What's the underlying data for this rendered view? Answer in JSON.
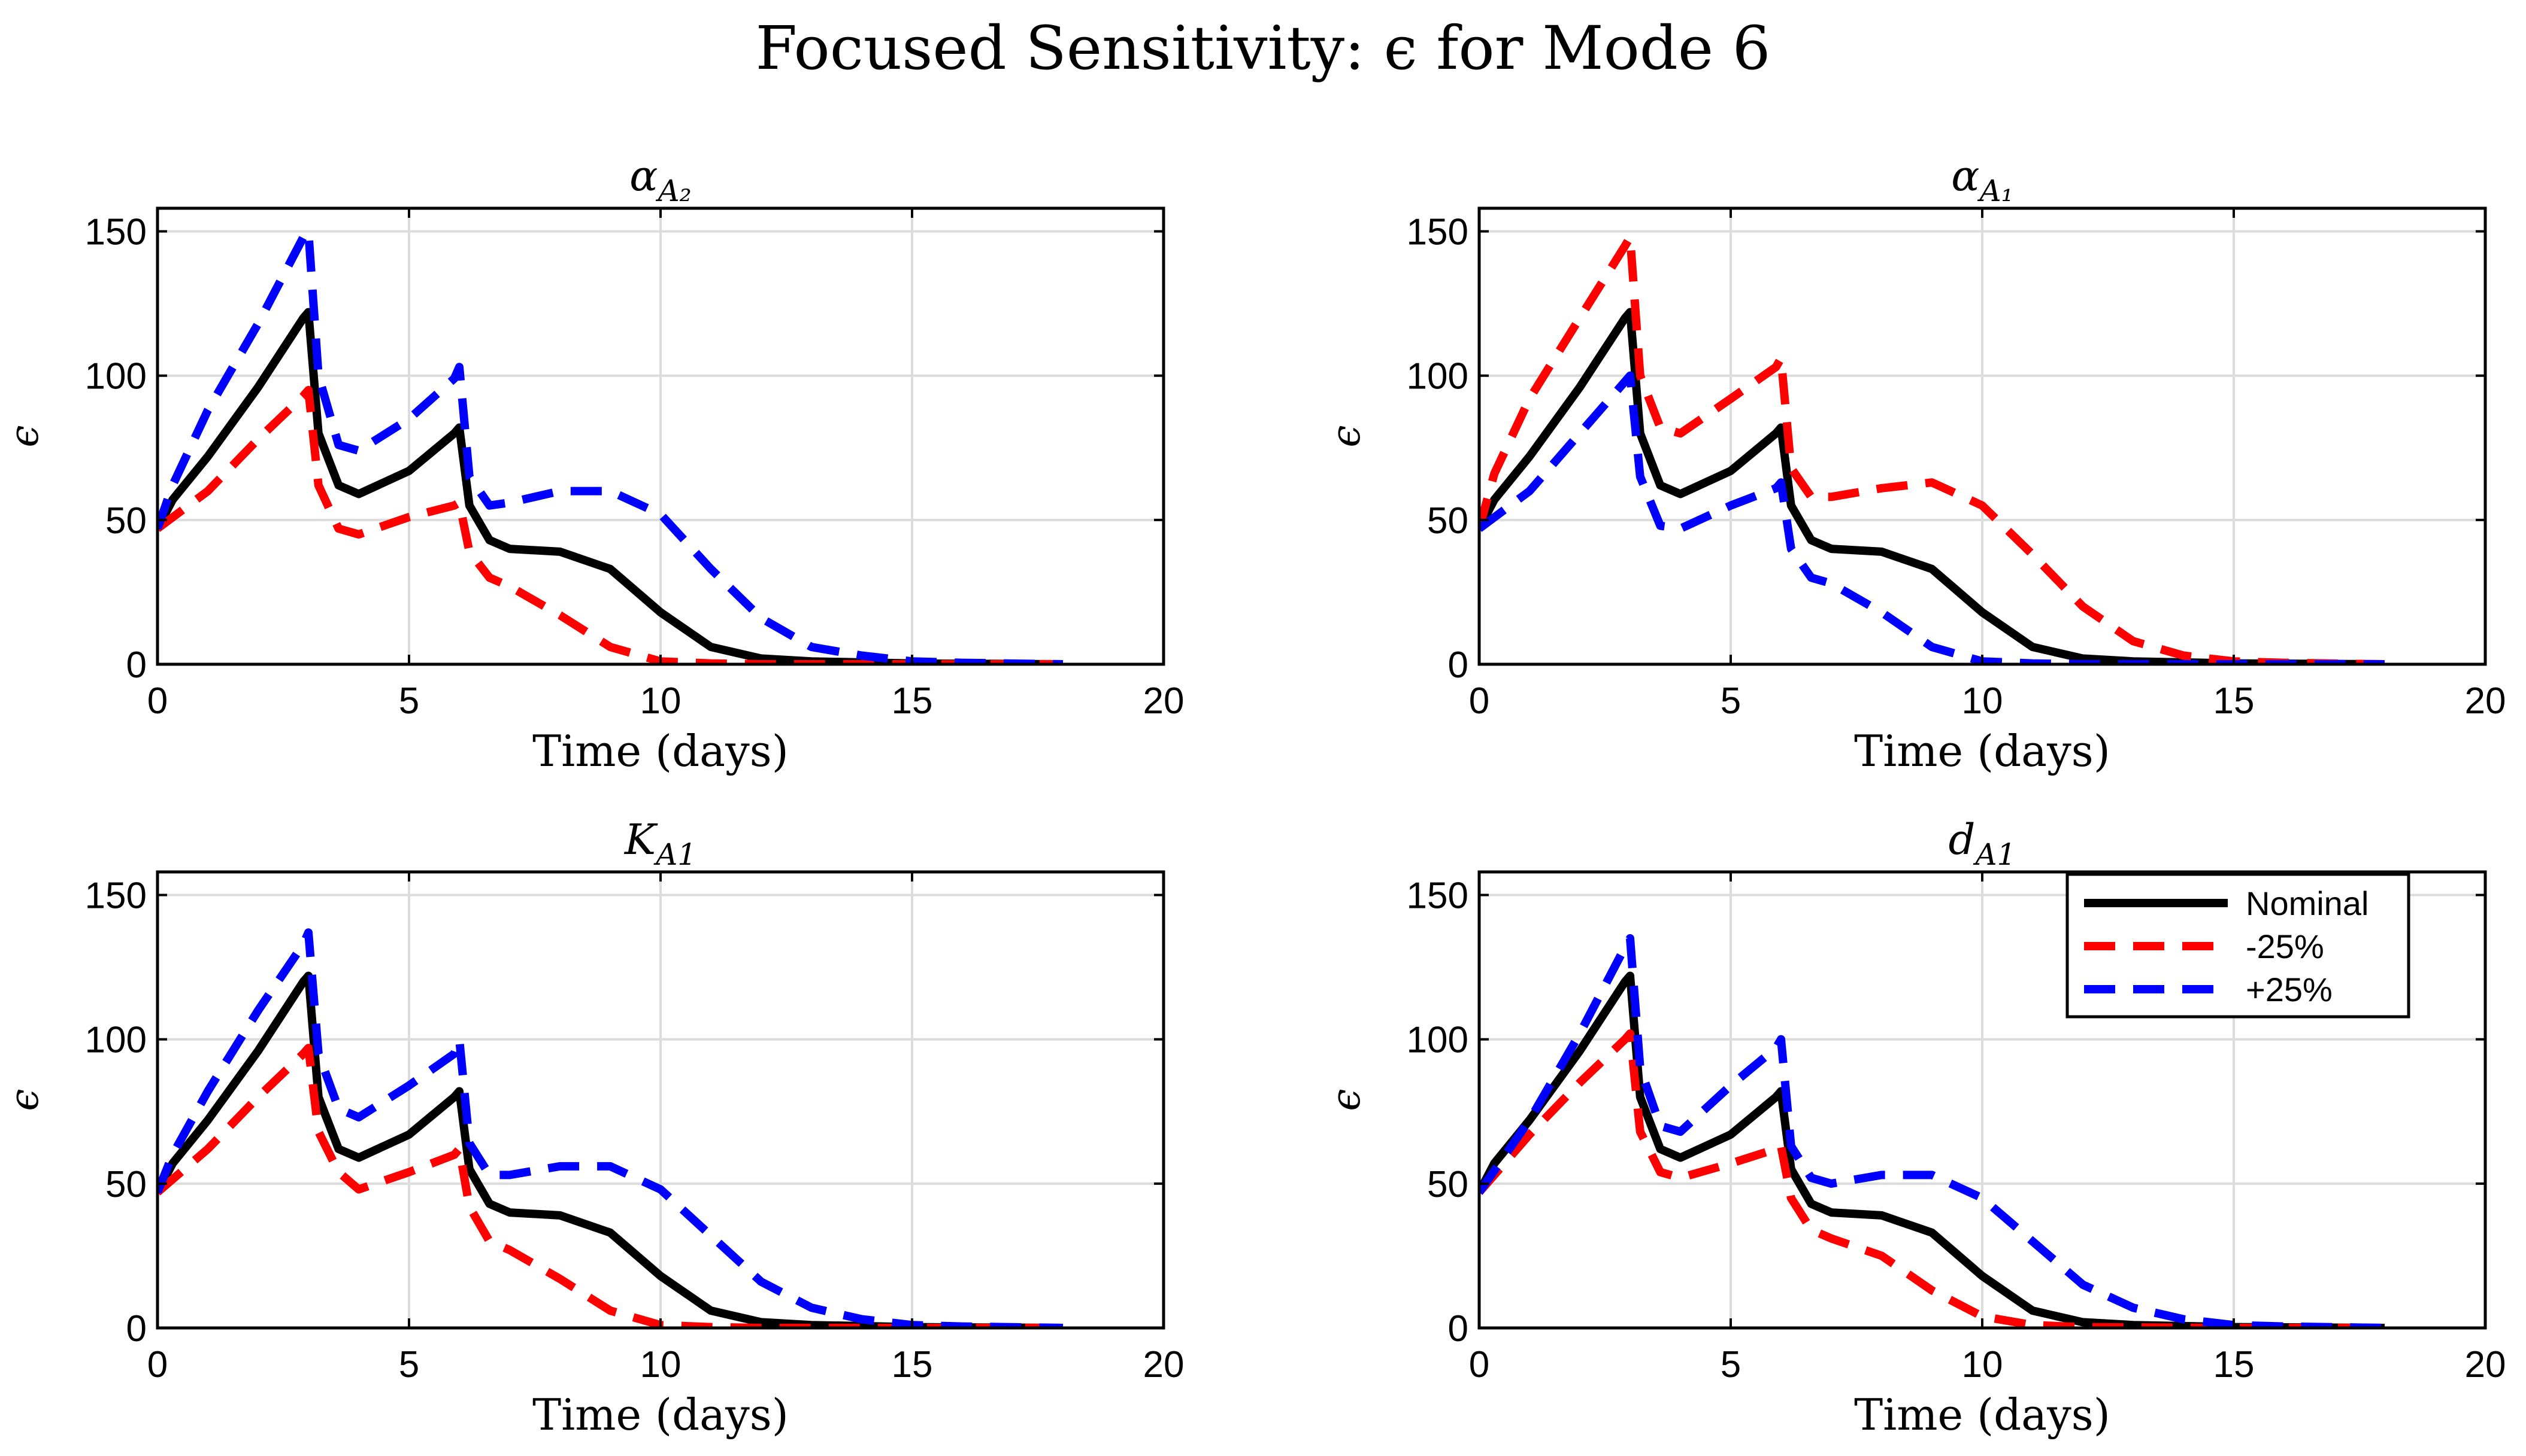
{
  "figure": {
    "title": "Focused Sensitivity: ϵ for Mode 6",
    "colors": {
      "nominal": "#000000",
      "minus": "#ff0000",
      "plus": "#0000ff",
      "grid": "#dcdcdc"
    }
  },
  "legend": {
    "placement": "top-right",
    "panel": 3,
    "entries": [
      "Nominal",
      "-25%",
      "+25%"
    ]
  },
  "chart_data": [
    {
      "type": "line",
      "title": "α",
      "title_sub": "A₂",
      "xlabel": "Time (days)",
      "ylabel": "ϵ",
      "xlim": [
        0,
        20
      ],
      "ylim": [
        0,
        158
      ],
      "xticks": [
        0,
        5,
        10,
        15,
        20
      ],
      "yticks": [
        0,
        50,
        100,
        150
      ],
      "grid": true,
      "series": [
        {
          "name": "Nominal",
          "style": "solid",
          "x": [
            0,
            0.3,
            1,
            2,
            2.9,
            3.0,
            3.2,
            3.6,
            4.0,
            5.0,
            5.9,
            6.0,
            6.2,
            6.6,
            7.0,
            8.0,
            9.0,
            10.0,
            11.0,
            12.0,
            13.0,
            15.0,
            18.0
          ],
          "y": [
            47,
            57,
            72,
            96,
            120,
            122,
            80,
            62,
            59,
            67,
            80,
            82,
            55,
            43,
            40,
            39,
            33,
            18,
            6,
            2,
            1,
            0.3,
            0
          ]
        },
        {
          "name": "-25%",
          "style": "dashed",
          "x": [
            0,
            1,
            2,
            2.9,
            3.0,
            3.2,
            3.6,
            4.0,
            5.0,
            5.9,
            6.0,
            6.2,
            6.6,
            7.0,
            8.0,
            9.0,
            10.0,
            11.0,
            12.0,
            13.0,
            15.0,
            18.0
          ],
          "y": [
            47,
            60,
            78,
            93,
            95,
            62,
            47,
            45,
            51,
            55,
            56,
            39,
            30,
            27,
            17,
            6,
            1,
            0.3,
            0,
            0,
            0,
            0
          ]
        },
        {
          "name": "+25%",
          "style": "dashed",
          "x": [
            0,
            0.3,
            1,
            2,
            2.9,
            3.0,
            3.2,
            3.6,
            4.0,
            5.0,
            5.9,
            6.0,
            6.2,
            6.6,
            7.0,
            8.0,
            9.0,
            10.0,
            11.0,
            12.0,
            13.0,
            14.0,
            15.0,
            16.0,
            18.0
          ],
          "y": [
            47,
            62,
            88,
            118,
            148,
            150,
            100,
            76,
            74,
            85,
            99,
            103,
            65,
            55,
            56,
            60,
            60,
            52,
            33,
            16,
            6,
            3,
            1,
            0.5,
            0
          ]
        }
      ]
    },
    {
      "type": "line",
      "title": "α",
      "title_sub": "A₁",
      "xlabel": "Time (days)",
      "ylabel": "ϵ",
      "xlim": [
        0,
        20
      ],
      "ylim": [
        0,
        158
      ],
      "xticks": [
        0,
        5,
        10,
        15,
        20
      ],
      "yticks": [
        0,
        50,
        100,
        150
      ],
      "grid": true,
      "series": [
        {
          "name": "Nominal",
          "style": "solid",
          "x": [
            0,
            0.3,
            1,
            2,
            2.9,
            3.0,
            3.2,
            3.6,
            4.0,
            5.0,
            5.9,
            6.0,
            6.2,
            6.6,
            7.0,
            8.0,
            9.0,
            10.0,
            11.0,
            12.0,
            13.0,
            15.0,
            18.0
          ],
          "y": [
            47,
            57,
            72,
            96,
            120,
            122,
            80,
            62,
            59,
            67,
            80,
            82,
            55,
            43,
            40,
            39,
            33,
            18,
            6,
            2,
            1,
            0.3,
            0
          ]
        },
        {
          "name": "-25%",
          "style": "dashed",
          "x": [
            0,
            0.3,
            1,
            2,
            2.9,
            3.0,
            3.2,
            3.6,
            4.0,
            5.0,
            5.9,
            6.0,
            6.2,
            6.6,
            7.0,
            8.0,
            9.0,
            10.0,
            11.0,
            12.0,
            13.0,
            14.0,
            15.0,
            16.0,
            18.0
          ],
          "y": [
            47,
            66,
            92,
            120,
            145,
            148,
            100,
            82,
            80,
            92,
            103,
            106,
            68,
            58,
            58,
            61,
            63,
            55,
            38,
            20,
            8,
            3,
            1,
            0.5,
            0
          ]
        },
        {
          "name": "+25%",
          "style": "dashed",
          "x": [
            0,
            1,
            2,
            2.9,
            3.0,
            3.2,
            3.6,
            4.0,
            5.0,
            5.9,
            6.0,
            6.2,
            6.6,
            7.0,
            8.0,
            9.0,
            10.0,
            11.0,
            12.0,
            15.0,
            18.0
          ],
          "y": [
            47,
            60,
            80,
            98,
            100,
            65,
            48,
            47,
            55,
            61,
            63,
            40,
            30,
            28,
            18,
            6,
            1,
            0.3,
            0,
            0,
            0
          ]
        }
      ]
    },
    {
      "type": "line",
      "title": "K",
      "title_sub": "A1",
      "xlabel": "Time (days)",
      "ylabel": "ϵ",
      "xlim": [
        0,
        20
      ],
      "ylim": [
        0,
        158
      ],
      "xticks": [
        0,
        5,
        10,
        15,
        20
      ],
      "yticks": [
        0,
        50,
        100,
        150
      ],
      "grid": true,
      "series": [
        {
          "name": "Nominal",
          "style": "solid",
          "x": [
            0,
            0.3,
            1,
            2,
            2.9,
            3.0,
            3.2,
            3.6,
            4.0,
            5.0,
            5.9,
            6.0,
            6.2,
            6.6,
            7.0,
            8.0,
            9.0,
            10.0,
            11.0,
            12.0,
            13.0,
            15.0,
            18.0
          ],
          "y": [
            47,
            57,
            72,
            96,
            120,
            122,
            80,
            62,
            59,
            67,
            80,
            82,
            55,
            43,
            40,
            39,
            33,
            18,
            6,
            2,
            1,
            0.3,
            0
          ]
        },
        {
          "name": "-25%",
          "style": "dashed",
          "x": [
            0,
            1,
            2,
            2.9,
            3.0,
            3.2,
            3.6,
            4.0,
            5.0,
            5.9,
            6.0,
            6.2,
            6.6,
            7.0,
            8.0,
            9.0,
            10.0,
            11.0,
            12.0,
            15.0,
            18.0
          ],
          "y": [
            47,
            62,
            80,
            95,
            97,
            68,
            54,
            48,
            54,
            60,
            62,
            42,
            30,
            27,
            17,
            6,
            1,
            0.3,
            0,
            0,
            0
          ]
        },
        {
          "name": "+25%",
          "style": "dashed",
          "x": [
            0,
            0.3,
            1,
            2,
            2.9,
            3.0,
            3.2,
            3.6,
            4.0,
            5.0,
            5.9,
            6.0,
            6.2,
            6.6,
            7.0,
            8.0,
            9.0,
            10.0,
            11.0,
            12.0,
            13.0,
            14.0,
            15.0,
            16.0,
            18.0
          ],
          "y": [
            47,
            60,
            82,
            110,
            133,
            137,
            95,
            76,
            73,
            84,
            95,
            100,
            64,
            53,
            53,
            56,
            56,
            48,
            32,
            16,
            7,
            3,
            1,
            0.5,
            0
          ]
        }
      ]
    },
    {
      "type": "line",
      "title": "d",
      "title_sub": "A1",
      "xlabel": "Time (days)",
      "ylabel": "ϵ",
      "xlim": [
        0,
        20
      ],
      "ylim": [
        0,
        158
      ],
      "xticks": [
        0,
        5,
        10,
        15,
        20
      ],
      "yticks": [
        0,
        50,
        100,
        150
      ],
      "grid": true,
      "series": [
        {
          "name": "Nominal",
          "style": "solid",
          "x": [
            0,
            0.3,
            1,
            2,
            2.9,
            3.0,
            3.2,
            3.6,
            4.0,
            5.0,
            5.9,
            6.0,
            6.2,
            6.6,
            7.0,
            8.0,
            9.0,
            10.0,
            11.0,
            12.0,
            13.0,
            15.0,
            18.0
          ],
          "y": [
            47,
            57,
            72,
            96,
            120,
            122,
            80,
            62,
            59,
            67,
            80,
            82,
            55,
            43,
            40,
            39,
            33,
            18,
            6,
            2,
            1,
            0.3,
            0
          ]
        },
        {
          "name": "-25%",
          "style": "dashed",
          "x": [
            0,
            1,
            2,
            2.9,
            3.0,
            3.2,
            3.6,
            4.0,
            5.0,
            5.9,
            6.0,
            6.2,
            6.6,
            7.0,
            8.0,
            9.0,
            10.0,
            11.0,
            12.0,
            15.0,
            18.0
          ],
          "y": [
            47,
            67,
            85,
            100,
            102,
            68,
            54,
            52,
            57,
            62,
            63,
            45,
            34,
            31,
            25,
            13,
            4,
            1,
            0.3,
            0,
            0
          ]
        },
        {
          "name": "+25%",
          "style": "dashed",
          "x": [
            0,
            1,
            2,
            2.9,
            3.0,
            3.2,
            3.6,
            4.0,
            5.0,
            5.9,
            6.0,
            6.2,
            6.6,
            7.0,
            8.0,
            9.0,
            10.0,
            11.0,
            12.0,
            13.0,
            14.0,
            15.0,
            16.0,
            18.0
          ],
          "y": [
            47,
            72,
            102,
            132,
            135,
            90,
            70,
            68,
            84,
            97,
            100,
            63,
            52,
            50,
            53,
            53,
            45,
            30,
            15,
            7,
            3,
            1,
            0.5,
            0
          ]
        }
      ]
    }
  ]
}
